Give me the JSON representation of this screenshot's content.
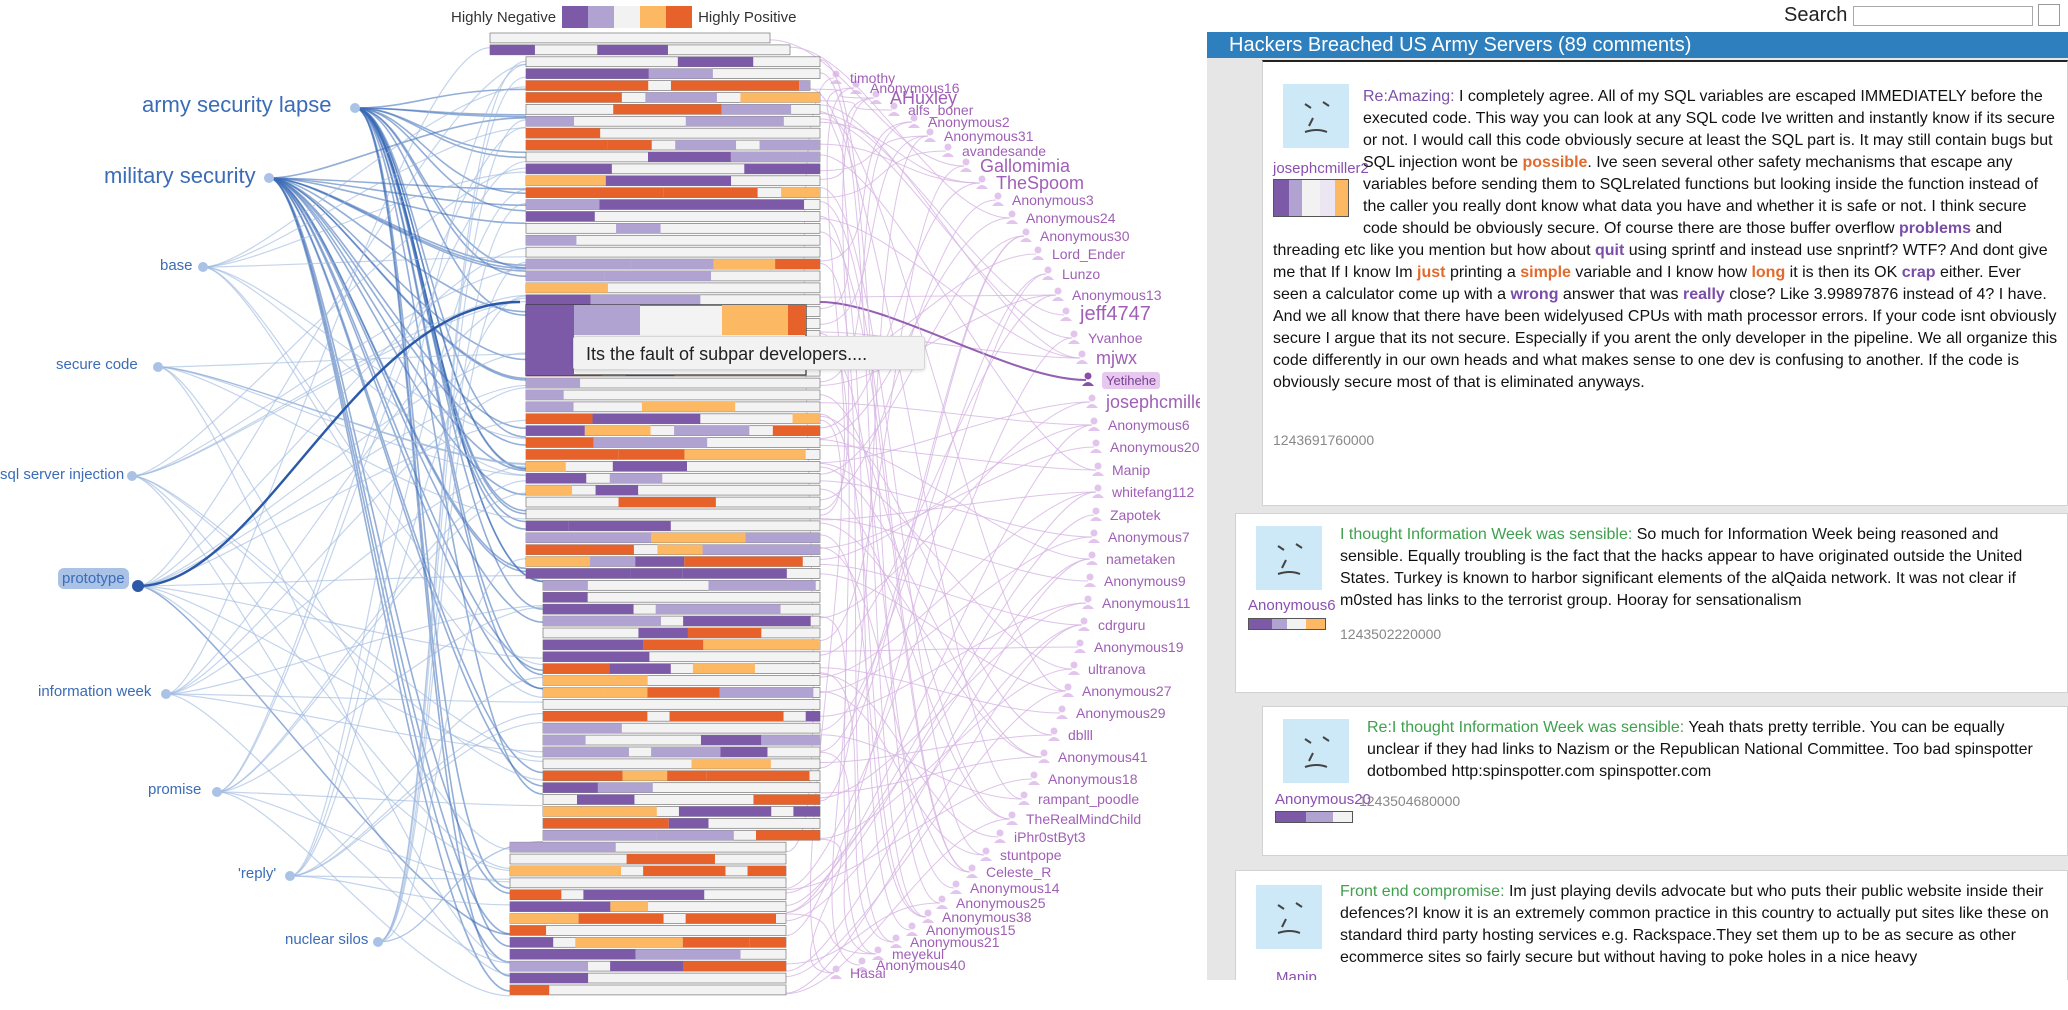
{
  "legend": {
    "negative_label": "Highly Negative",
    "positive_label": "Highly Positive",
    "colors": [
      "#7c5aa8",
      "#b0a3d1",
      "#f2f2f2",
      "#fdb863",
      "#e6622a"
    ]
  },
  "keywords": [
    {
      "label": "army security lapse",
      "size": "big"
    },
    {
      "label": "military security",
      "size": "big"
    },
    {
      "label": "base",
      "size": "sm"
    },
    {
      "label": "secure code",
      "size": "sm"
    },
    {
      "label": "sql server injection",
      "size": "sm"
    },
    {
      "label": "prototype",
      "size": "sm",
      "selected": true
    },
    {
      "label": "information week",
      "size": "sm"
    },
    {
      "label": "promise",
      "size": "sm"
    },
    {
      "label": "'reply'",
      "size": "sm"
    },
    {
      "label": "nuclear silos",
      "size": "sm"
    }
  ],
  "authors": [
    "timothy",
    "Anonymous16",
    "AHuxley",
    "alfs_boner",
    "Anonymous2",
    "Anonymous31",
    "avandesande",
    "Gallomimia",
    "TheSpoom",
    "Anonymous3",
    "Anonymous24",
    "Anonymous30",
    "Lord_Ender",
    "Lunzo",
    "Anonymous13",
    "jeff4747",
    "Yvanhoe",
    "mjwx",
    "Yetihehe",
    "josephcmille",
    "Anonymous6",
    "Anonymous20",
    "Manip",
    "whitefang112",
    "Zapotek",
    "Anonymous7",
    "nametaken",
    "Anonymous9",
    "Anonymous11",
    "cdrguru",
    "Anonymous19",
    "ultranova",
    "Anonymous27",
    "Anonymous29",
    "dblll",
    "Anonymous41",
    "Anonymous18",
    "rampant_poodle",
    "TheRealMindChild",
    "iPhr0stByt3",
    "stuntpope",
    "Celeste_R",
    "Anonymous14",
    "Anonymous25",
    "Anonymous38",
    "Anonymous15",
    "Anonymous21",
    "meyekul",
    "Anonymous40",
    "Hasai"
  ],
  "tooltip": "Its the fault of subpar developers....",
  "search": {
    "label": "Search",
    "placeholder": ""
  },
  "thread": {
    "title": "Hackers Breached US Army Servers (89 comments)"
  },
  "comments": [
    {
      "author": "josephcmiller2",
      "title": "Re:Amazing:",
      "text_parts": [
        {
          "t": " I completely agree. All of my SQL variables are escaped IMMEDIATELY before the executed code. This way you can look at any SQL code Ive written and instantly know if its secure or not. I would call this code obviously secure at least the SQL part is. It may still contain bugs but SQL injection wont be "
        },
        {
          "t": "possible",
          "c": "pos"
        },
        {
          "t": ". Ive seen several other safety mechanisms that escape any variables before sending them to SQLrelated functions but looking inside the function instead of the caller you really dont know what data you have and whether it is safe or not. I think secure code should be obviously secure. Of course there are those buffer overflow "
        },
        {
          "t": "problems",
          "c": "neg"
        },
        {
          "t": " and threading etc like you mention but how about "
        },
        {
          "t": "quit",
          "c": "neg"
        },
        {
          "t": " using sprintf and instead use snprintf? WTF? And dont give me that If I know Im "
        },
        {
          "t": "just",
          "c": "pos"
        },
        {
          "t": " printing a "
        },
        {
          "t": "simple",
          "c": "pos"
        },
        {
          "t": " variable and I know how "
        },
        {
          "t": "long",
          "c": "pos"
        },
        {
          "t": " it is then its OK "
        },
        {
          "t": "crap",
          "c": "neg"
        },
        {
          "t": " either. Ever seen a calculator come up with a "
        },
        {
          "t": "wrong",
          "c": "neg"
        },
        {
          "t": " answer that was "
        },
        {
          "t": "really",
          "c": "neg"
        },
        {
          "t": " close? Like 3.99897876 instead of 4? I have. And we all know that there have been widelyused CPUs with math processor errors. If your code isnt obviously secure I argue that its not secure. Especially if you arent the only developer in the pipeline. We all organize this code differently in our own heads and what makes sense to one dev is confusing to another. If the code is obviously secure most of that is eliminated anyways."
        }
      ],
      "time": "1243691760000"
    },
    {
      "author": "Anonymous6",
      "title": "I thought Information Week was sensible:",
      "text": " So much for Information Week being reasoned and sensible. Equally troubling is the fact that the hacks appear to have originated outside the United States. Turkey is known to harbor significant elements of the alQaida network. It was not clear if m0sted has links to the terrorist group. Hooray for sensationalism",
      "time": "1243502220000"
    },
    {
      "author": "Anonymous20",
      "title": "Re:I thought Information Week was sensible:",
      "text": " Yeah thats pretty terrible. You can be equally unclear if they had links to Nazism or the Republican National Committee. Too bad spinspotter dotbombed http:spinspotter.com spinspotter.com",
      "time": "1243504680000"
    },
    {
      "author": "Manip",
      "title": "Front end compromise:",
      "text": " Im just playing devils advocate but who puts their public website inside their defences?I know it is an extremely common practice in this country to actually put sites like these on standard third party hosting services e.g. Rackspace.They set them up to be as secure as other ecommerce sites so fairly secure but without having to poke holes in a nice heavy"
    }
  ]
}
